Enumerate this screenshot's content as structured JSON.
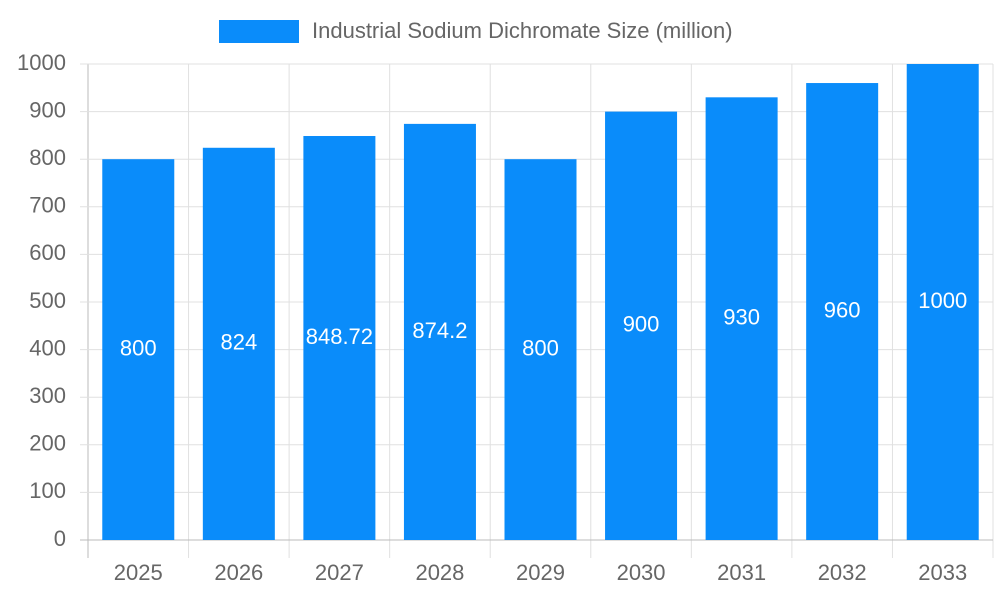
{
  "chart_data": {
    "type": "bar",
    "categories": [
      "2025",
      "2026",
      "2027",
      "2028",
      "2029",
      "2030",
      "2031",
      "2032",
      "2033"
    ],
    "series": [
      {
        "name": "Industrial Sodium Dichromate Size (million)",
        "color": "#0a8cfa",
        "values": [
          800,
          824,
          848.72,
          874.2,
          800,
          900,
          930,
          960,
          1000
        ]
      }
    ],
    "ylim": [
      0,
      1000
    ],
    "yticks": [
      0,
      100,
      200,
      300,
      400,
      500,
      600,
      700,
      800,
      900,
      1000
    ],
    "grid": true,
    "legend": "top"
  }
}
